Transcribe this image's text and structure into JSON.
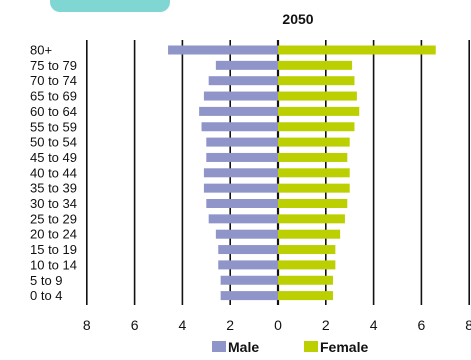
{
  "chart_data": {
    "type": "bar",
    "orientation": "horizontal-population-pyramid",
    "title": "2050",
    "categories": [
      "80+",
      "75 to 79",
      "70 to 74",
      "65 to 69",
      "60 to 64",
      "55 to 59",
      "50 to 54",
      "45 to 49",
      "40 to 44",
      "35 to 39",
      "30 to 34",
      "25 to 29",
      "20 to 24",
      "15 to 19",
      "10 to 14",
      "5 to 9",
      "0 to 4"
    ],
    "series": [
      {
        "name": "Male",
        "side": "left",
        "color": "#8f95c9",
        "values": [
          4.6,
          2.6,
          2.9,
          3.1,
          3.3,
          3.2,
          3.0,
          3.0,
          3.1,
          3.1,
          3.0,
          2.9,
          2.6,
          2.5,
          2.5,
          2.4,
          2.4
        ]
      },
      {
        "name": "Female",
        "side": "right",
        "color": "#bccf00",
        "values": [
          6.6,
          3.1,
          3.2,
          3.3,
          3.4,
          3.2,
          3.0,
          2.9,
          3.0,
          3.0,
          2.9,
          2.8,
          2.6,
          2.4,
          2.4,
          2.3,
          2.3
        ]
      }
    ],
    "xticks": [
      "8",
      "6",
      "4",
      "2",
      "0",
      "2",
      "4",
      "6",
      "8"
    ],
    "xlim": [
      -8,
      8
    ],
    "grid": true,
    "legend": "bottom"
  }
}
